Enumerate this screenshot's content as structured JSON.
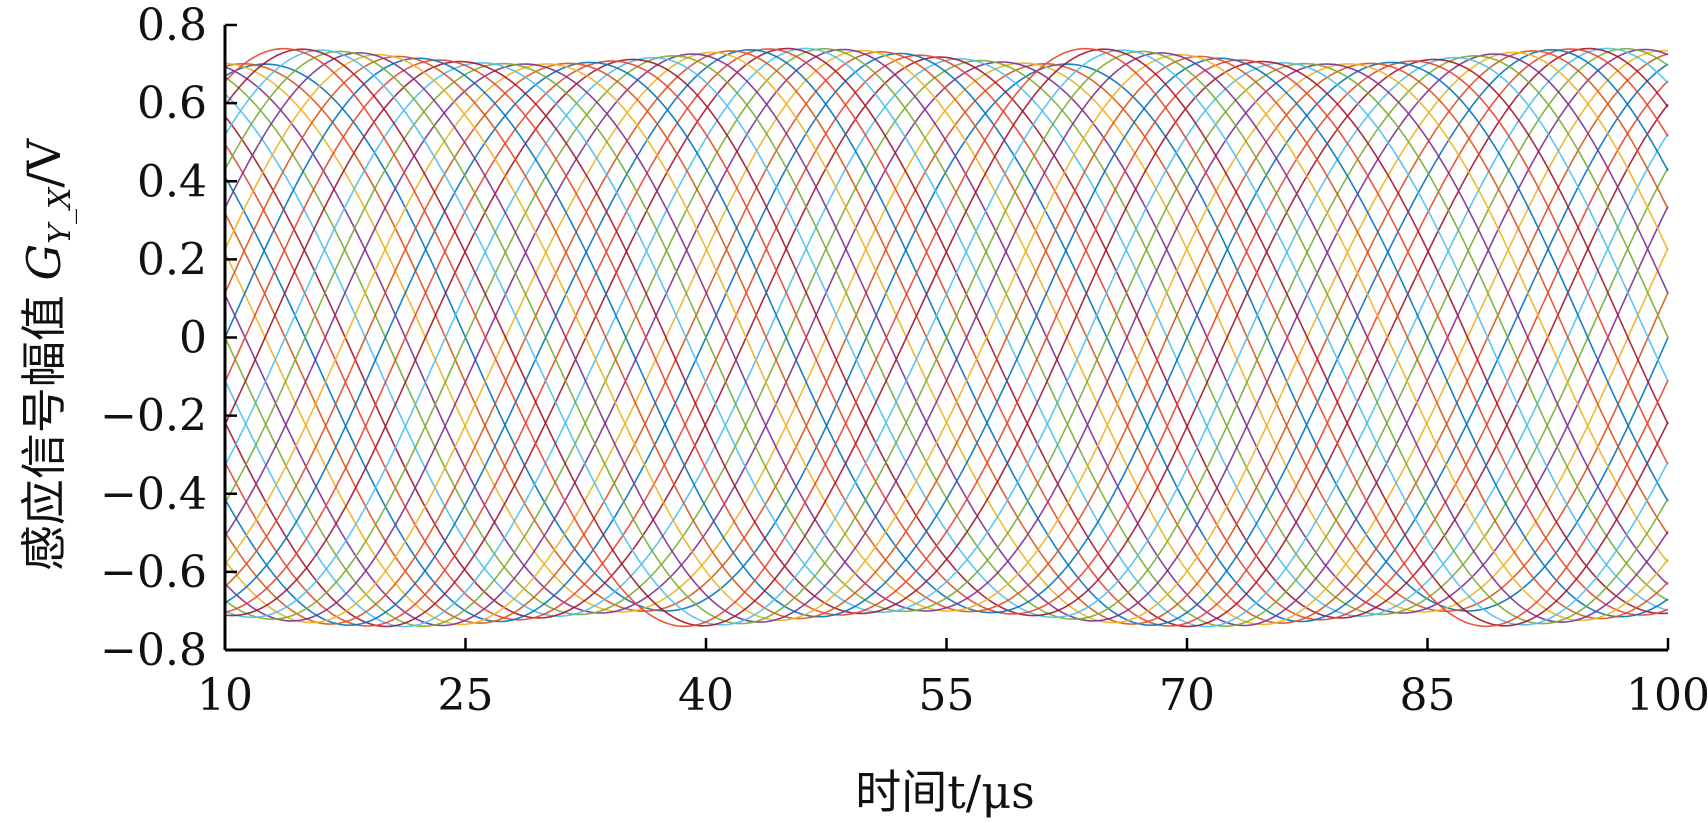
{
  "chart_data": {
    "type": "line",
    "xlabel": "时间t/μs",
    "ylabel": "感应信号幅值 G_{Y_X}/V",
    "ylabel_parts": {
      "prefix": "感应信号幅值 ",
      "symbol": "G",
      "subscript": "Y_X",
      "suffix": "/V"
    },
    "xlim": [
      10,
      100
    ],
    "ylim": [
      -0.8,
      0.8
    ],
    "x_ticks": [
      10,
      25,
      40,
      55,
      70,
      85,
      100
    ],
    "y_ticks": [
      -0.8,
      -0.6,
      -0.4,
      -0.2,
      0,
      0.2,
      0.4,
      0.6,
      0.8
    ],
    "x_tick_labels": [
      "10",
      "25",
      "40",
      "55",
      "70",
      "85",
      "100"
    ],
    "y_tick_labels": [
      "−0.8",
      "−0.6",
      "−0.4",
      "−0.2",
      "0",
      "0.2",
      "0.4",
      "0.6",
      "0.8"
    ],
    "grid": false,
    "legend": "none",
    "series_model": {
      "description": "family of phase-shifted sinusoids",
      "count": 40,
      "amplitude": 0.72,
      "amplitude_ripple": 0.02,
      "period_us": 50,
      "phase_step_deg": 9
    },
    "colors": [
      "#0072BD",
      "#D95319",
      "#EDB120",
      "#7E2F8E",
      "#77AC30",
      "#4DBEEE",
      "#A2142F",
      "#E8442E"
    ]
  }
}
